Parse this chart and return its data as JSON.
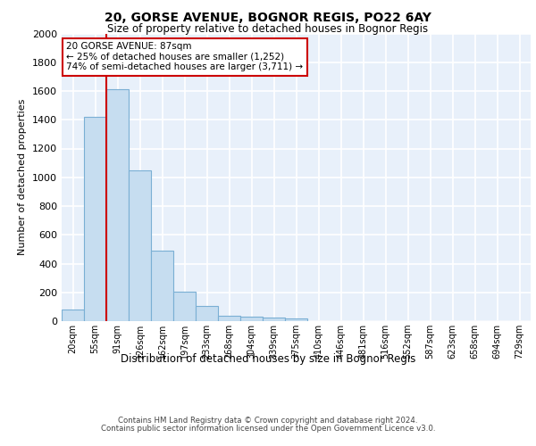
{
  "title_line1": "20, GORSE AVENUE, BOGNOR REGIS, PO22 6AY",
  "title_line2": "Size of property relative to detached houses in Bognor Regis",
  "xlabel": "Distribution of detached houses by size in Bognor Regis",
  "ylabel": "Number of detached properties",
  "bin_labels": [
    "20sqm",
    "55sqm",
    "91sqm",
    "126sqm",
    "162sqm",
    "197sqm",
    "233sqm",
    "268sqm",
    "304sqm",
    "339sqm",
    "375sqm",
    "410sqm",
    "446sqm",
    "481sqm",
    "516sqm",
    "552sqm",
    "587sqm",
    "623sqm",
    "658sqm",
    "694sqm",
    "729sqm"
  ],
  "bar_values": [
    80,
    1420,
    1610,
    1050,
    490,
    205,
    105,
    40,
    30,
    22,
    18,
    0,
    0,
    0,
    0,
    0,
    0,
    0,
    0,
    0,
    0
  ],
  "bar_color": "#c6ddf0",
  "bar_edge_color": "#7aafd4",
  "background_color": "#e8f0fa",
  "grid_color": "#ffffff",
  "red_line_bin": 2,
  "annotation_title": "20 GORSE AVENUE: 87sqm",
  "annotation_line1": "← 25% of detached houses are smaller (1,252)",
  "annotation_line2": "74% of semi-detached houses are larger (3,711) →",
  "annotation_box_color": "#ffffff",
  "annotation_box_edge": "#cc0000",
  "ylim": [
    0,
    2000
  ],
  "yticks": [
    0,
    200,
    400,
    600,
    800,
    1000,
    1200,
    1400,
    1600,
    1800,
    2000
  ],
  "footer_line1": "Contains HM Land Registry data © Crown copyright and database right 2024.",
  "footer_line2": "Contains public sector information licensed under the Open Government Licence v3.0."
}
